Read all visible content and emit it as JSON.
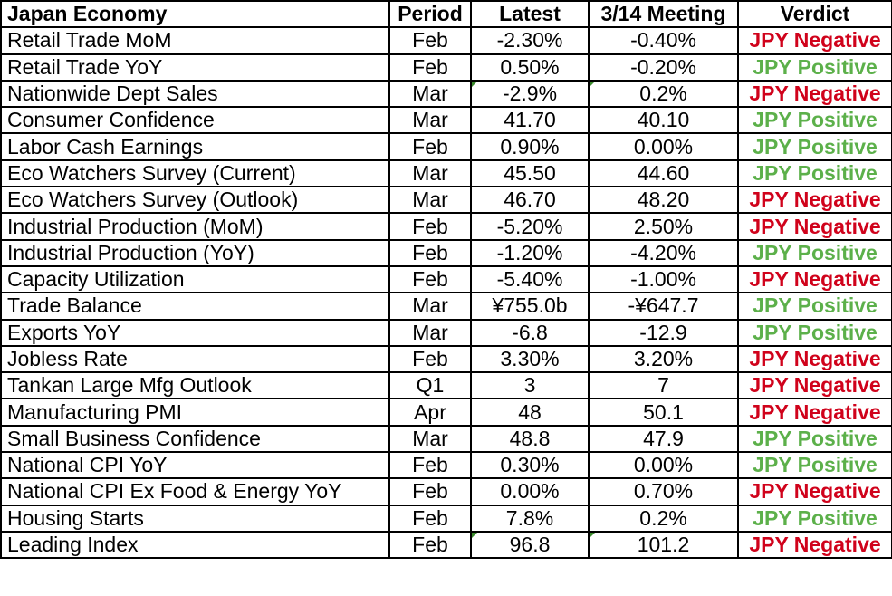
{
  "colors": {
    "positive": "#5cb04a",
    "negative": "#d0021b",
    "note_marker": "#3b8b2c"
  },
  "table": {
    "headers": [
      "Japan Economy",
      "Period",
      "Latest",
      "3/14 Meeting",
      "Verdict"
    ],
    "rows": [
      {
        "indicator": "Retail Trade MoM",
        "period": "Feb",
        "latest": "-2.30%",
        "meeting": "-0.40%",
        "verdict": "JPY Negative",
        "sentiment": "negative"
      },
      {
        "indicator": "Retail Trade YoY",
        "period": "Feb",
        "latest": "0.50%",
        "meeting": "-0.20%",
        "verdict": "JPY Positive",
        "sentiment": "positive"
      },
      {
        "indicator": "Nationwide Dept Sales",
        "period": "Mar",
        "latest": "-2.9%",
        "meeting": "0.2%",
        "verdict": "JPY Negative",
        "sentiment": "negative",
        "note_latest": true,
        "note_meeting": true
      },
      {
        "indicator": "Consumer Confidence",
        "period": "Mar",
        "latest": "41.70",
        "meeting": "40.10",
        "verdict": "JPY Positive",
        "sentiment": "positive"
      },
      {
        "indicator": "Labor Cash Earnings",
        "period": "Feb",
        "latest": "0.90%",
        "meeting": "0.00%",
        "verdict": "JPY Positive",
        "sentiment": "positive"
      },
      {
        "indicator": "Eco Watchers Survey (Current)",
        "period": "Mar",
        "latest": "45.50",
        "meeting": "44.60",
        "verdict": "JPY Positive",
        "sentiment": "positive"
      },
      {
        "indicator": "Eco Watchers Survey (Outlook)",
        "period": "Mar",
        "latest": "46.70",
        "meeting": "48.20",
        "verdict": "JPY Negative",
        "sentiment": "negative"
      },
      {
        "indicator": "Industrial Production (MoM)",
        "period": "Feb",
        "latest": "-5.20%",
        "meeting": "2.50%",
        "verdict": "JPY Negative",
        "sentiment": "negative"
      },
      {
        "indicator": "Industrial Production (YoY)",
        "period": "Feb",
        "latest": "-1.20%",
        "meeting": "-4.20%",
        "verdict": "JPY Positive",
        "sentiment": "positive"
      },
      {
        "indicator": "Capacity Utilization",
        "period": "Feb",
        "latest": "-5.40%",
        "meeting": "-1.00%",
        "verdict": "JPY Negative",
        "sentiment": "negative"
      },
      {
        "indicator": "Trade Balance",
        "period": "Mar",
        "latest": "¥755.0b",
        "meeting": "-¥647.7",
        "verdict": "JPY Positive",
        "sentiment": "positive"
      },
      {
        "indicator": "Exports YoY",
        "period": "Mar",
        "latest": "-6.8",
        "meeting": "-12.9",
        "verdict": "JPY Positive",
        "sentiment": "positive"
      },
      {
        "indicator": "Jobless Rate",
        "period": "Feb",
        "latest": "3.30%",
        "meeting": "3.20%",
        "verdict": "JPY Negative",
        "sentiment": "negative"
      },
      {
        "indicator": "Tankan Large Mfg Outlook",
        "period": "Q1",
        "latest": "3",
        "meeting": "7",
        "verdict": "JPY Negative",
        "sentiment": "negative"
      },
      {
        "indicator": "Manufacturing PMI",
        "period": "Apr",
        "latest": "48",
        "meeting": "50.1",
        "verdict": "JPY Negative",
        "sentiment": "negative"
      },
      {
        "indicator": "Small Business Confidence",
        "period": "Mar",
        "latest": "48.8",
        "meeting": "47.9",
        "verdict": "JPY Positive",
        "sentiment": "positive"
      },
      {
        "indicator": "National CPI YoY",
        "period": "Feb",
        "latest": "0.30%",
        "meeting": "0.00%",
        "verdict": "JPY Positive",
        "sentiment": "positive"
      },
      {
        "indicator": "National CPI Ex Food & Energy YoY",
        "period": "Feb",
        "latest": "0.00%",
        "meeting": "0.70%",
        "verdict": "JPY Negative",
        "sentiment": "negative"
      },
      {
        "indicator": "Housing Starts",
        "period": "Feb",
        "latest": "7.8%",
        "meeting": "0.2%",
        "verdict": "JPY Positive",
        "sentiment": "positive"
      },
      {
        "indicator": "Leading Index",
        "period": "Feb",
        "latest": "96.8",
        "meeting": "101.2",
        "verdict": "JPY Negative",
        "sentiment": "negative",
        "note_latest": true,
        "note_meeting": true
      }
    ]
  }
}
